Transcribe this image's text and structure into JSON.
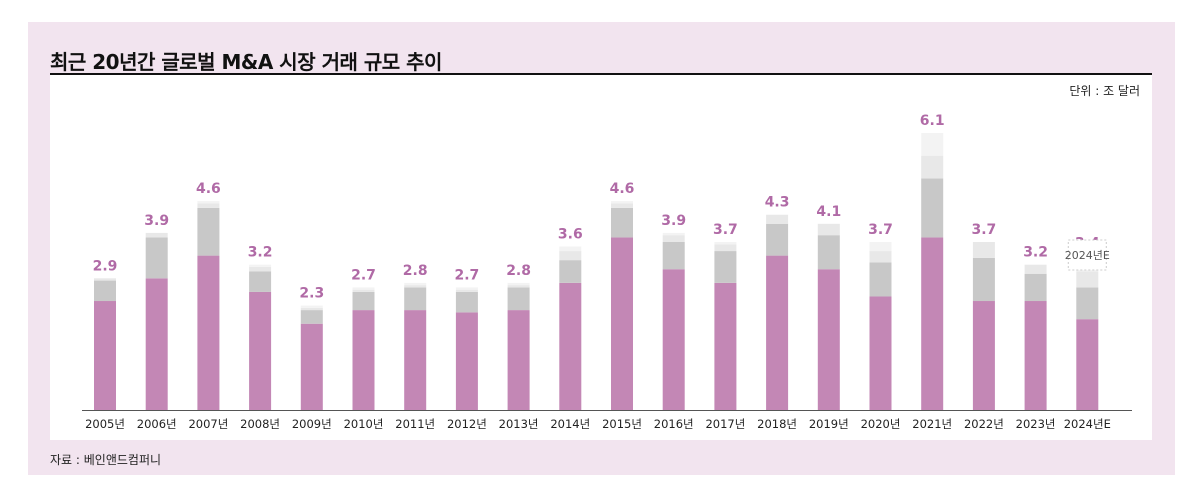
{
  "header": {
    "title": "최근 20년간 글로벌 M&A 시장 거래 규모 추이"
  },
  "unit_label": "단위 : 조 달러",
  "source_label": "자료 : 베인앤드컴퍼니",
  "estimate_label": "2024년E",
  "colors": {
    "background": "#f2e4ef",
    "bar_main": "#c387b5",
    "bar_grey": "#c8c8c8",
    "bar_light": "#e8e8e8",
    "bar_lighter": "#f3f3f3",
    "value_label": "#b06aa6"
  },
  "chart_data": {
    "type": "bar",
    "stacked": true,
    "categories": [
      "2005년",
      "2006년",
      "2007년",
      "2008년",
      "2009년",
      "2010년",
      "2011년",
      "2012년",
      "2013년",
      "2014년",
      "2015년",
      "2016년",
      "2017년",
      "2018년",
      "2019년",
      "2020년",
      "2021년",
      "2022년",
      "2023년",
      "2024년E"
    ],
    "totals": [
      2.9,
      3.9,
      4.6,
      3.2,
      2.3,
      2.7,
      2.8,
      2.7,
      2.8,
      3.6,
      4.6,
      3.9,
      3.7,
      4.3,
      4.1,
      3.7,
      6.1,
      3.7,
      3.2,
      3.4
    ],
    "totals_labels": [
      "2.9",
      "3.9",
      "4.6",
      "3.2",
      "2.3",
      "2.7",
      "2.8",
      "2.7",
      "2.8",
      "3.6",
      "4.6",
      "3.9",
      "3.7",
      "4.3",
      "4.1",
      "3.7",
      "6.1",
      "3.7",
      "3.2",
      "3.4"
    ],
    "segments": [
      [
        2.4,
        0.45,
        0.05,
        0
      ],
      [
        2.9,
        0.9,
        0.1,
        0
      ],
      [
        3.4,
        1.05,
        0.1,
        0.05
      ],
      [
        2.6,
        0.45,
        0.1,
        0.05
      ],
      [
        1.9,
        0.3,
        0.05,
        0.05
      ],
      [
        2.2,
        0.4,
        0.05,
        0.05
      ],
      [
        2.2,
        0.5,
        0.05,
        0.05
      ],
      [
        2.15,
        0.45,
        0.05,
        0.05
      ],
      [
        2.2,
        0.5,
        0.05,
        0.05
      ],
      [
        2.8,
        0.5,
        0.2,
        0.1
      ],
      [
        3.8,
        0.65,
        0.1,
        0.05
      ],
      [
        3.1,
        0.6,
        0.15,
        0.05
      ],
      [
        2.8,
        0.7,
        0.15,
        0.05
      ],
      [
        3.4,
        0.7,
        0.2,
        0
      ],
      [
        3.1,
        0.75,
        0.25,
        0
      ],
      [
        2.5,
        0.75,
        0.25,
        0.2
      ],
      [
        3.8,
        1.3,
        0.5,
        0.5
      ],
      [
        2.4,
        0.95,
        0.35,
        0
      ],
      [
        2.4,
        0.6,
        0.2,
        0
      ],
      [
        2.0,
        0.7,
        0.35,
        0.35
      ]
    ],
    "ylim": [
      0,
      6.5
    ]
  }
}
